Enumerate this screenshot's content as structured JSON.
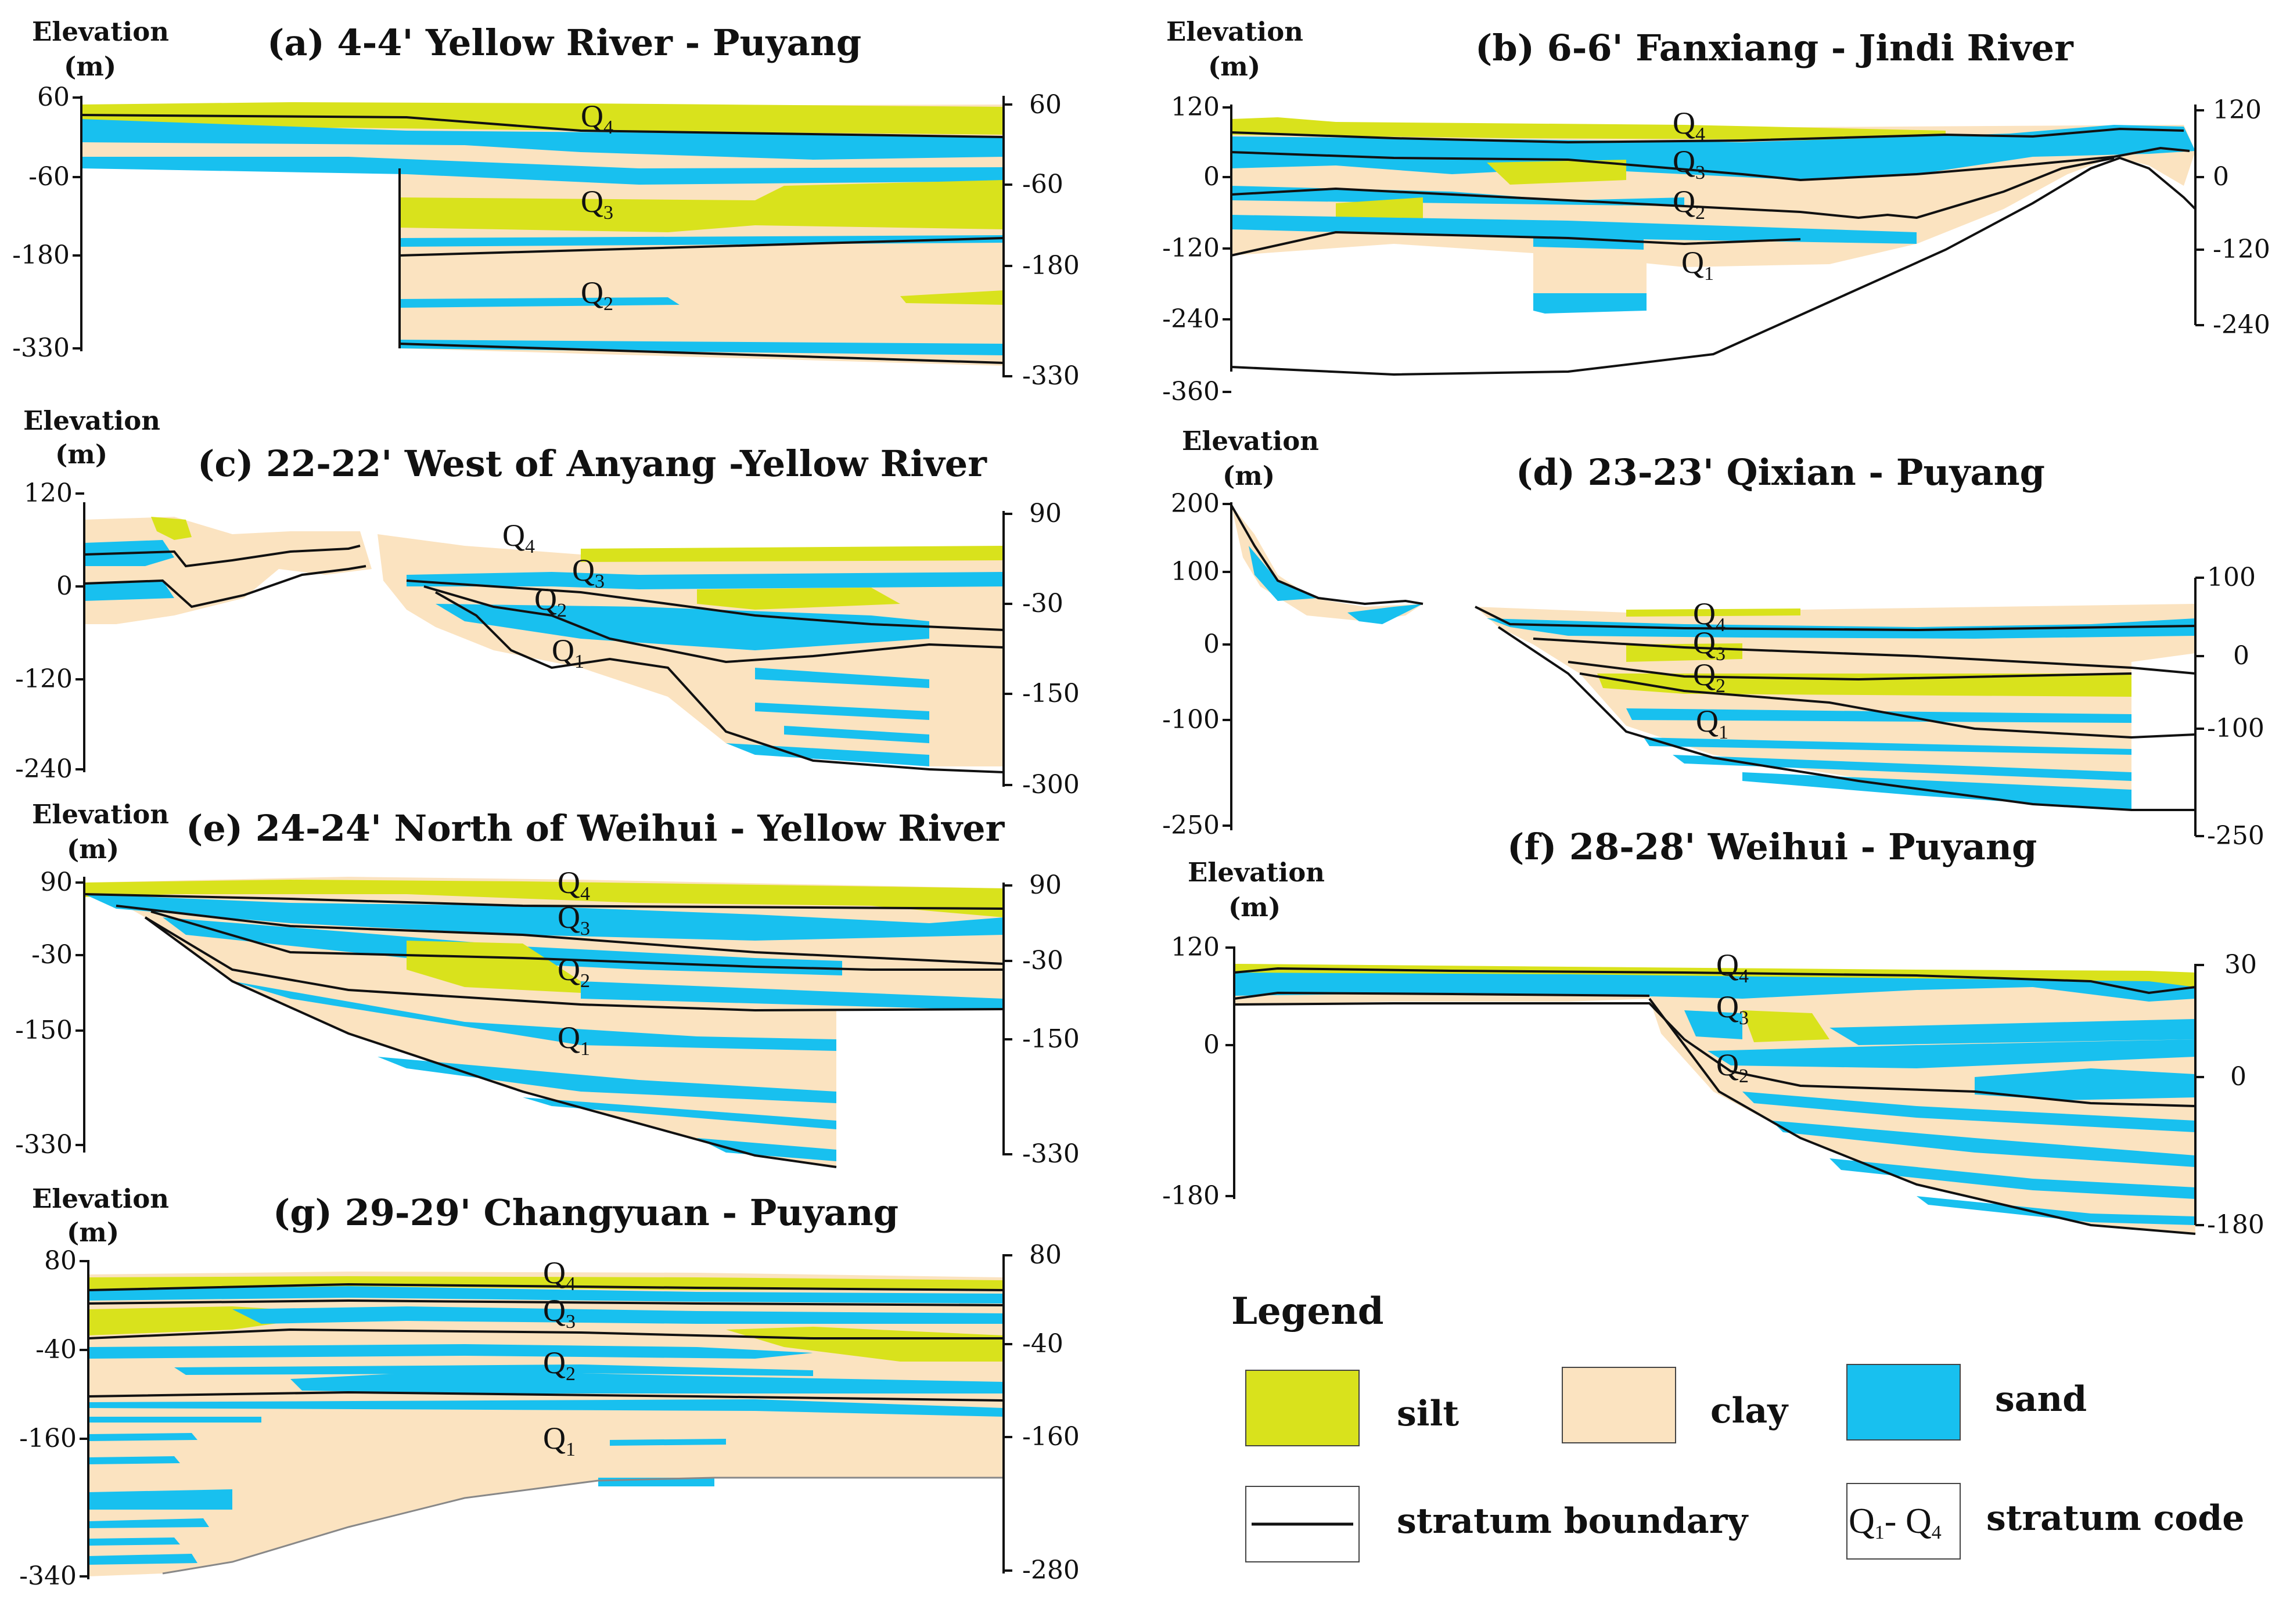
{
  "colors": {
    "silt": "#d9e21c",
    "clay": "#fbe3c0",
    "sand": "#18c0ef",
    "line": "#111111"
  },
  "axis_label": {
    "line1": "Elevation",
    "line2": "(m)"
  },
  "panels": [
    {
      "id": "a",
      "title": "(a) 4-4' Yellow River - Puyang",
      "left_ticks": [
        "60",
        "-60",
        "-180",
        "-330"
      ],
      "right_ticks": [
        "60",
        "-60",
        "-180",
        "-330"
      ],
      "strata": [
        "Q4",
        "Q3",
        "Q2"
      ]
    },
    {
      "id": "b",
      "title": "(b) 6-6' Fanxiang - Jindi River",
      "left_ticks": [
        "120",
        "0",
        "-120",
        "-240",
        "-360"
      ],
      "right_ticks": [
        "120",
        "0",
        "-120",
        "-240"
      ],
      "strata": [
        "Q4",
        "Q3",
        "Q2",
        "Q1"
      ]
    },
    {
      "id": "c",
      "title": "(c) 22-22' West of Anyang -Yellow River",
      "left_ticks": [
        "120",
        "0",
        "-120",
        "-240"
      ],
      "right_ticks": [
        "90",
        "-30",
        "-150",
        "-300"
      ],
      "strata": [
        "Q4",
        "Q3",
        "Q2",
        "Q1"
      ]
    },
    {
      "id": "d",
      "title": "(d) 23-23' Qixian - Puyang",
      "left_ticks": [
        "200",
        "100",
        "0",
        "-100",
        "-250"
      ],
      "right_ticks": [
        "100",
        "0",
        "-100",
        "-250"
      ],
      "strata": [
        "Q4",
        "Q3",
        "Q2",
        "Q1"
      ]
    },
    {
      "id": "e",
      "title": "(e) 24-24' North of Weihui - Yellow River",
      "left_ticks": [
        "90",
        "-30",
        "-150",
        "-330"
      ],
      "right_ticks": [
        "90",
        "-30",
        "-150",
        "-330"
      ],
      "strata": [
        "Q4",
        "Q3",
        "Q2",
        "Q1"
      ]
    },
    {
      "id": "f",
      "title": "(f) 28-28' Weihui - Puyang",
      "left_ticks": [
        "120",
        "0",
        "-180"
      ],
      "right_ticks": [
        "30",
        "0",
        "-180"
      ],
      "strata": [
        "Q4",
        "Q3",
        "Q2"
      ]
    },
    {
      "id": "g",
      "title": "(g) 29-29' Changyuan - Puyang",
      "left_ticks": [
        "80",
        "-40",
        "-160",
        "-340"
      ],
      "right_ticks": [
        "80",
        "-40",
        "-160",
        "-280"
      ],
      "strata": [
        "Q4",
        "Q3",
        "Q2",
        "Q1"
      ]
    }
  ],
  "legend": {
    "title": "Legend",
    "silt": "silt",
    "clay": "clay",
    "sand": "sand",
    "boundary": "stratum boundary",
    "code_box": {
      "q": "Q",
      "from": "1",
      "dash": "- ",
      "to": "4"
    },
    "code": "stratum code"
  }
}
